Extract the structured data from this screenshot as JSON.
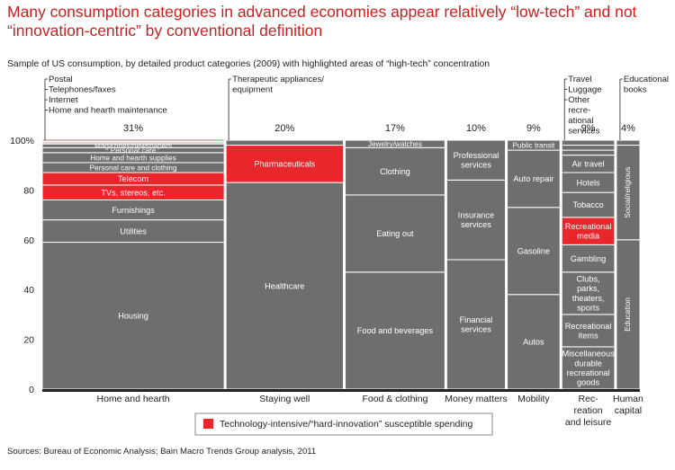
{
  "title": "Many consumption categories in advanced economies appear relatively “low-tech” and not “innovation-centric” by conventional definition",
  "subtitle": "Sample of US consumption, by detailed product categories (2009) with highlighted areas of “high-tech” concentration",
  "source": "Sources: Bureau of Economic Analysis; Bain Macro Trends Group analysis, 2011",
  "colors": {
    "title": "#cc1f1f",
    "segment": "#6e6e6e",
    "highlight": "#e8262b",
    "axis": "#222222",
    "divider": "#ffffff"
  },
  "legend": {
    "label": "Technology-intensive/“hard-innovation” susceptible spending",
    "color": "#e8262b"
  },
  "chart_data": {
    "type": "bar",
    "variant": "mekko (variable-width 100% stacked bars)",
    "y_axis": {
      "ylim": [
        0,
        100
      ],
      "ticks": [
        "0",
        "20",
        "40",
        "60",
        "80",
        "100%"
      ]
    },
    "grid": false,
    "legend_position": "bottom",
    "columns": [
      {
        "name": "Home and hearth",
        "share_label": "31%",
        "width_pct": 31,
        "segments": [
          {
            "label": "Housing",
            "value": 59,
            "highlight": false
          },
          {
            "label": "Utilities",
            "value": 9,
            "highlight": false
          },
          {
            "label": "Furnishings",
            "value": 8,
            "highlight": false
          },
          {
            "label": "TVs, stereos, etc.",
            "value": 6,
            "highlight": true
          },
          {
            "label": "Telecom",
            "value": 5,
            "highlight": true
          },
          {
            "label": "Personal care and clothing",
            "value": 4,
            "highlight": false
          },
          {
            "label": "Home and hearth supplies",
            "value": 4,
            "highlight": false
          },
          {
            "label": "Personal care",
            "value": 2,
            "highlight": false
          },
          {
            "label": "Magazines/newspapers",
            "value": 1.5,
            "highlight": false
          },
          {
            "label": "",
            "value": 0.5,
            "highlight": false
          },
          {
            "label": "",
            "value": 0.5,
            "highlight": false
          },
          {
            "label": "",
            "value": 0.5,
            "highlight": false
          },
          {
            "label": "",
            "value": 0.5,
            "highlight": true
          }
        ],
        "callouts": [
          "Postal",
          "Telephones/faxes",
          "Internet",
          "Home and hearth maintenance"
        ]
      },
      {
        "name": "Staying well",
        "share_label": "20%",
        "width_pct": 20,
        "segments": [
          {
            "label": "Healthcare",
            "value": 83,
            "highlight": false
          },
          {
            "label": "Pharmaceuticals",
            "value": 15,
            "highlight": true
          },
          {
            "label": "",
            "value": 2,
            "highlight": false
          }
        ],
        "callouts": [
          "Therapeutic appliances/ equipment"
        ]
      },
      {
        "name": "Food & clothing",
        "share_label": "17%",
        "width_pct": 17,
        "segments": [
          {
            "label": "Food and beverages",
            "value": 47,
            "highlight": false
          },
          {
            "label": "Eating out",
            "value": 31,
            "highlight": false
          },
          {
            "label": "Clothing",
            "value": 19,
            "highlight": false
          },
          {
            "label": "Jewelry/watches",
            "value": 3,
            "highlight": false
          }
        ],
        "callouts": []
      },
      {
        "name": "Money matters",
        "share_label": "10%",
        "width_pct": 10,
        "segments": [
          {
            "label": "Financial services",
            "value": 52,
            "highlight": false
          },
          {
            "label": "Insurance services",
            "value": 32,
            "highlight": false
          },
          {
            "label": "Professional services",
            "value": 16,
            "highlight": false
          }
        ],
        "callouts": []
      },
      {
        "name": "Mobility",
        "share_label": "9%",
        "width_pct": 9,
        "segments": [
          {
            "label": "Autos",
            "value": 38,
            "highlight": false
          },
          {
            "label": "Gasoline",
            "value": 35,
            "highlight": false
          },
          {
            "label": "Auto repair",
            "value": 23,
            "highlight": false
          },
          {
            "label": "Public transit",
            "value": 4,
            "highlight": false
          }
        ],
        "callouts": []
      },
      {
        "name": "Rec-reation and leisure",
        "name_lines": [
          "Rec-",
          "reation",
          "and leisure"
        ],
        "share_label": "9%",
        "width_pct": 9,
        "segments": [
          {
            "label": "Miscellaneous durable recreational goods",
            "value": 17,
            "highlight": false
          },
          {
            "label": "Recreational items",
            "value": 13,
            "highlight": false
          },
          {
            "label": "Clubs, parks, theaters, sports",
            "value": 17,
            "highlight": false
          },
          {
            "label": "Gambling",
            "value": 11,
            "highlight": false
          },
          {
            "label": "Recreational media",
            "value": 11,
            "highlight": true
          },
          {
            "label": "Tobacco",
            "value": 10,
            "highlight": false
          },
          {
            "label": "Hotels",
            "value": 8,
            "highlight": false
          },
          {
            "label": "Air travel",
            "value": 7,
            "highlight": false
          },
          {
            "label": "",
            "value": 2,
            "highlight": false
          },
          {
            "label": "",
            "value": 2,
            "highlight": false
          },
          {
            "label": "",
            "value": 2,
            "highlight": false
          }
        ],
        "callouts": [
          "Travel",
          "Luggage",
          "Other recre- ational services"
        ]
      },
      {
        "name": "Human capital",
        "name_lines": [
          "Human",
          "capital"
        ],
        "share_label": "4%",
        "width_pct": 4,
        "segments": [
          {
            "label": "Education",
            "value": 60,
            "highlight": false
          },
          {
            "label": "Social/religious",
            "value": 38,
            "highlight": false
          },
          {
            "label": "",
            "value": 2,
            "highlight": false
          }
        ],
        "callouts": [
          "Educational books"
        ]
      }
    ]
  }
}
